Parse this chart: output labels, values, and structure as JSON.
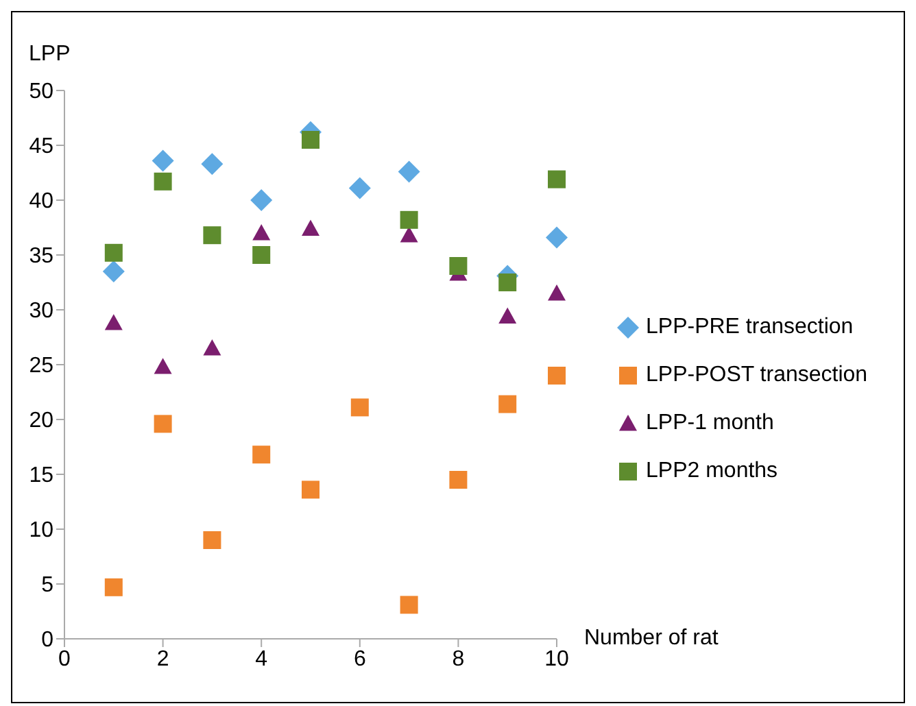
{
  "chart_data": {
    "type": "scatter",
    "ylabel": "LPP",
    "xlabel": "Number of rat",
    "x": [
      1,
      2,
      3,
      4,
      5,
      6,
      7,
      8,
      9,
      10
    ],
    "xlim": [
      0,
      10
    ],
    "xticks": [
      0,
      2,
      4,
      6,
      8,
      10
    ],
    "ylim": [
      0,
      50
    ],
    "yticks": [
      0,
      5,
      10,
      15,
      20,
      25,
      30,
      35,
      40,
      45,
      50
    ],
    "grid": false,
    "legend": "right",
    "series": [
      {
        "name": "LPP-PRE transection",
        "color": "#5ea9e2",
        "marker": "diamond",
        "values": [
          33.5,
          43.6,
          43.3,
          40.0,
          46.2,
          41.1,
          42.6,
          null,
          33.1,
          36.6
        ]
      },
      {
        "name": "LPP-POST transection",
        "color": "#f0862e",
        "marker": "square",
        "values": [
          4.7,
          19.6,
          9.0,
          16.8,
          13.6,
          21.1,
          3.1,
          14.5,
          21.4,
          24.0
        ]
      },
      {
        "name": "LPP-1 month",
        "color": "#7b1e6e",
        "marker": "triangle",
        "values": [
          28.8,
          24.8,
          26.5,
          37.0,
          37.4,
          null,
          36.8,
          33.3,
          29.4,
          31.5
        ]
      },
      {
        "name": "LPP2 months",
        "color": "#5e8c2e",
        "marker": "square",
        "values": [
          35.2,
          41.7,
          36.8,
          35.0,
          45.5,
          null,
          38.2,
          34.0,
          32.5,
          41.9
        ]
      }
    ]
  }
}
